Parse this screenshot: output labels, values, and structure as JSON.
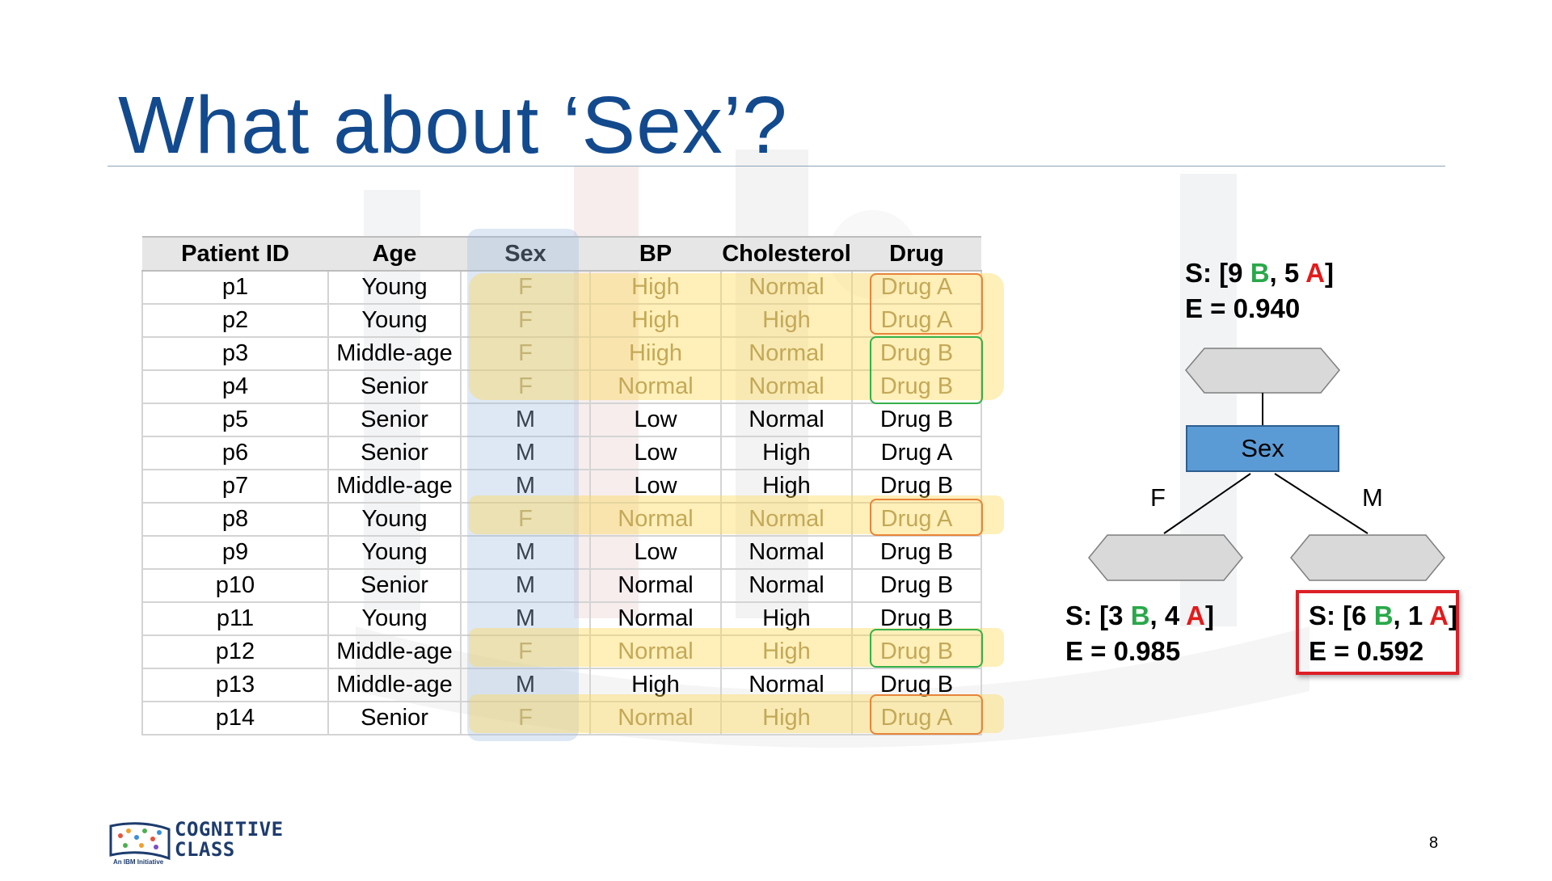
{
  "slide": {
    "title": "What about ‘Sex’?",
    "page_number": "8"
  },
  "table": {
    "headers": [
      "Patient ID",
      "Age",
      "Sex",
      "BP",
      "Cholesterol",
      "Drug"
    ],
    "rows": [
      [
        "p1",
        "Young",
        "F",
        "High",
        "Normal",
        "Drug A"
      ],
      [
        "p2",
        "Young",
        "F",
        "High",
        "High",
        "Drug A"
      ],
      [
        "p3",
        "Middle-age",
        "F",
        "Hiigh",
        "Normal",
        "Drug B"
      ],
      [
        "p4",
        "Senior",
        "F",
        "Normal",
        "Normal",
        "Drug B"
      ],
      [
        "p5",
        "Senior",
        "M",
        "Low",
        "Normal",
        "Drug B"
      ],
      [
        "p6",
        "Senior",
        "M",
        "Low",
        "High",
        "Drug A"
      ],
      [
        "p7",
        "Middle-age",
        "M",
        "Low",
        "High",
        "Drug B"
      ],
      [
        "p8",
        "Young",
        "F",
        "Normal",
        "Normal",
        "Drug A"
      ],
      [
        "p9",
        "Young",
        "M",
        "Low",
        "Normal",
        "Drug B"
      ],
      [
        "p10",
        "Senior",
        "M",
        "Normal",
        "Normal",
        "Drug B"
      ],
      [
        "p11",
        "Young",
        "M",
        "Normal",
        "High",
        "Drug B"
      ],
      [
        "p12",
        "Middle-age",
        "F",
        "Normal",
        "High",
        "Drug B"
      ],
      [
        "p13",
        "Middle-age",
        "M",
        "High",
        "Normal",
        "Drug B"
      ],
      [
        "p14",
        "Senior",
        "F",
        "Normal",
        "High",
        "Drug A"
      ]
    ]
  },
  "tree": {
    "root": {
      "prefix": "S: [9 ",
      "b": "B",
      "mid": ", 5 ",
      "a": "A",
      "suffix": "]",
      "entropy": "E = 0.940"
    },
    "node_label": "Sex",
    "branch_f": "F",
    "branch_m": "M",
    "left": {
      "prefix": "S: [3 ",
      "b": "B",
      "mid": ", 4 ",
      "a": "A",
      "suffix": "]",
      "entropy": "E = 0.985"
    },
    "right": {
      "prefix": "S: [6 ",
      "b": "B",
      "mid": ", 1 ",
      "a": "A",
      "suffix": "]",
      "entropy": "E = 0.592"
    }
  },
  "logo": {
    "line1": "COGNITIVE",
    "line2": "CLASS",
    "tagline": "An IBM Initiative"
  },
  "colors": {
    "title": "#134a8e",
    "b_label": "#2aa84a",
    "a_label": "#e21b1b",
    "node_fill": "#5b9bd5",
    "highlight": "#ffd650"
  }
}
